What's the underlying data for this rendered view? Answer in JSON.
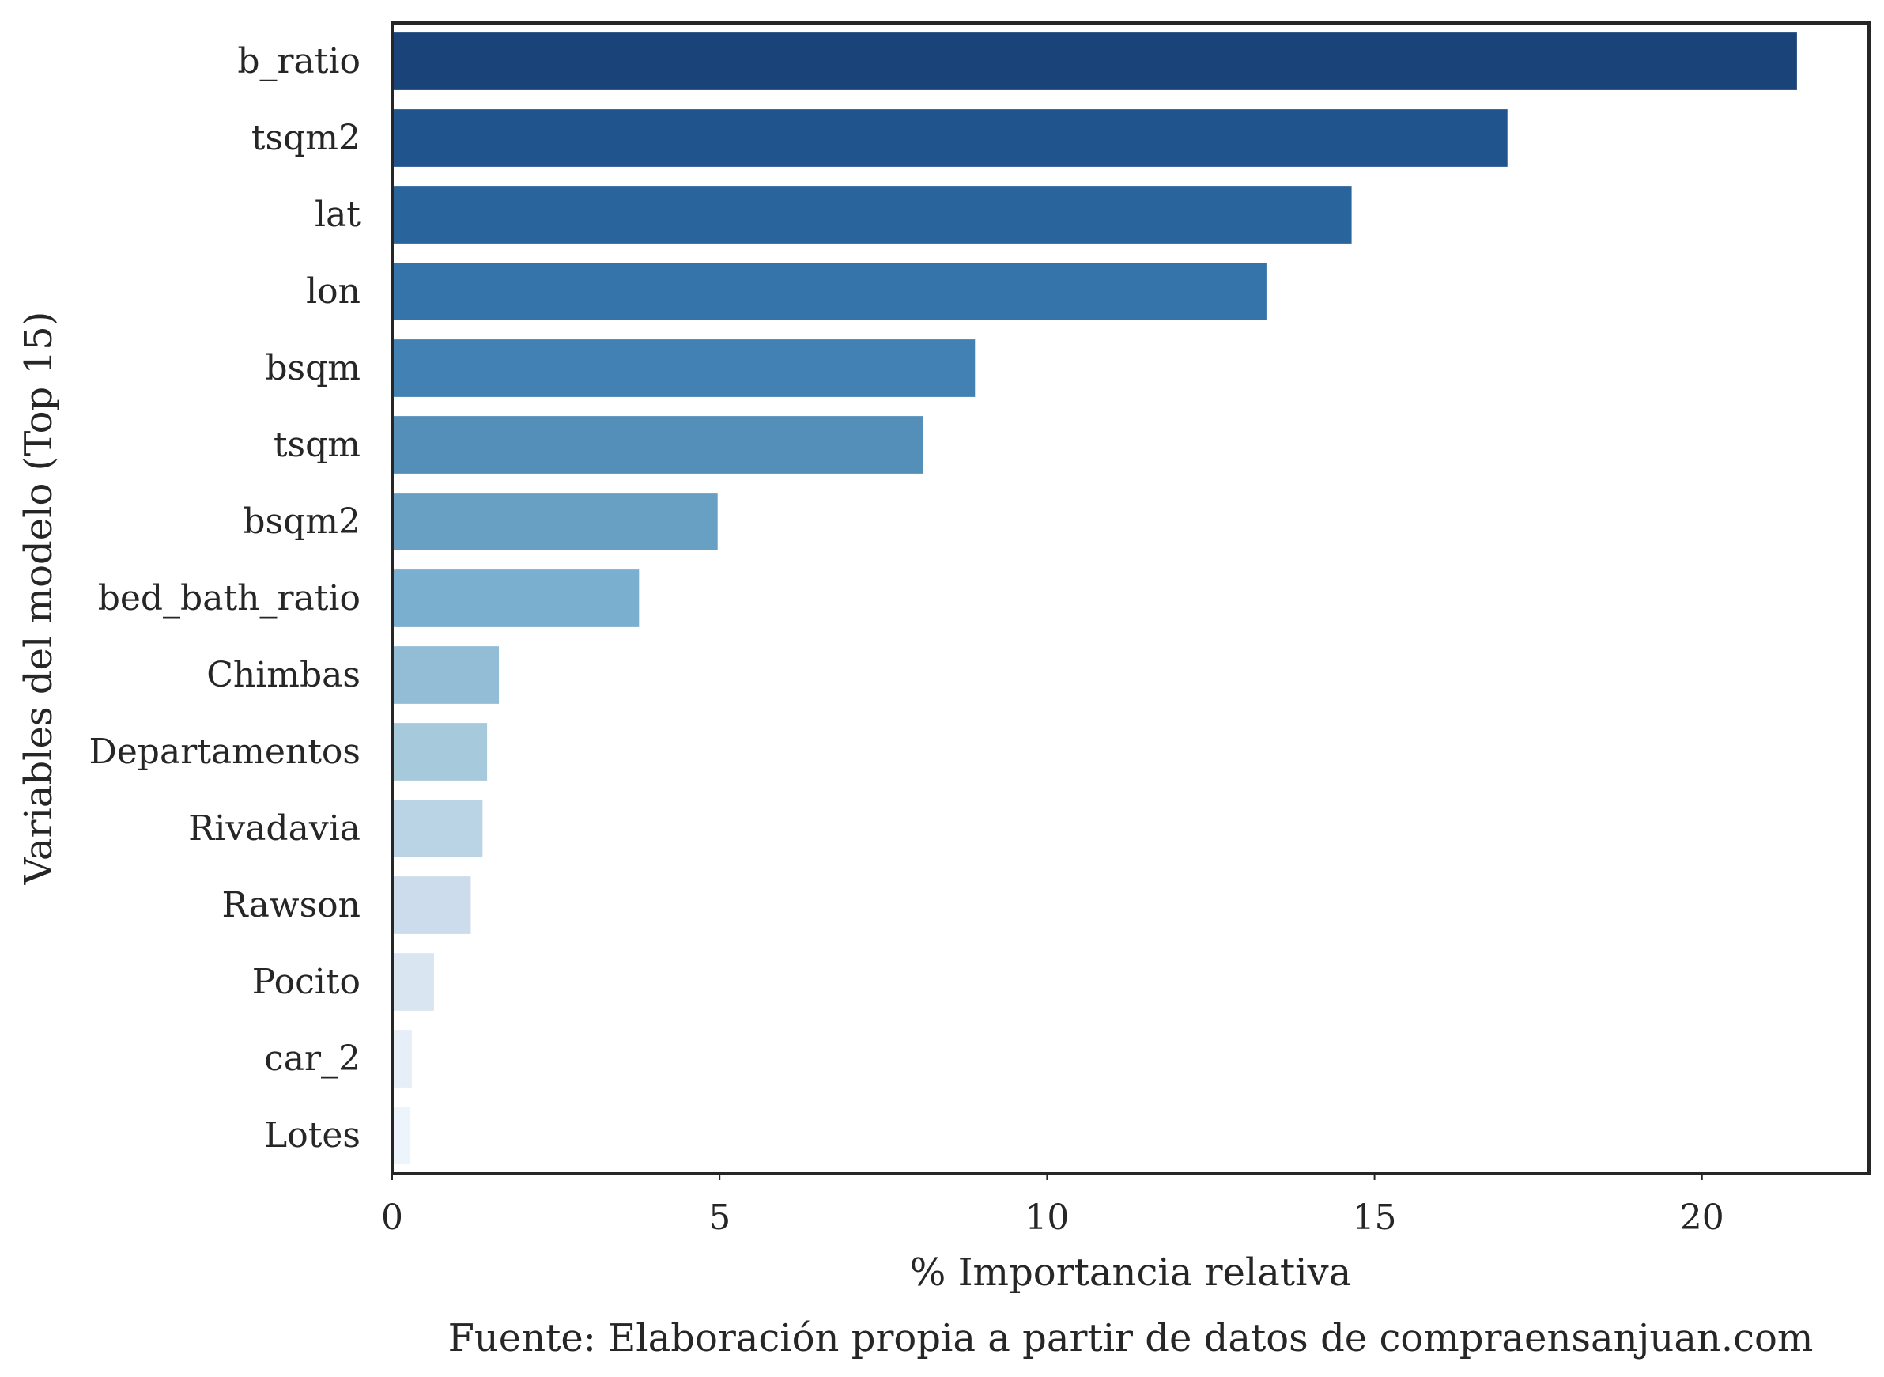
{
  "chart_data": {
    "type": "bar",
    "orientation": "horizontal",
    "xlabel": "% Importancia relativa",
    "ylabel": "Variables del modelo (Top 15)",
    "caption": "Fuente: Elaboración propia a partir de datos de compraensanjuan.com",
    "xlim": [
      0,
      22.55
    ],
    "xticks": [
      0,
      5,
      10,
      15,
      20
    ],
    "grid": false,
    "legend": "none",
    "categories": [
      "b_ratio",
      "tsqm2",
      "lat",
      "lon",
      "bsqm",
      "tsqm",
      "bsqm2",
      "bed_bath_ratio",
      "Chimbas",
      "Departamentos",
      "Rivadavia",
      "Rawson",
      "Pocito",
      "car_2",
      "Lotes"
    ],
    "values": [
      21.45,
      17.03,
      14.65,
      13.35,
      8.9,
      8.1,
      4.97,
      3.77,
      1.63,
      1.45,
      1.38,
      1.2,
      0.64,
      0.3,
      0.28
    ],
    "colors": [
      "#1a437a",
      "#1f548c",
      "#2a649d",
      "#3573ab",
      "#4181b3",
      "#548fba",
      "#68a0c4",
      "#7bafcf",
      "#93bdd7",
      "#a7c9dc",
      "#bad4e5",
      "#ccdcec",
      "#d9e6f1",
      "#e6eef7",
      "#eef4fb"
    ]
  }
}
